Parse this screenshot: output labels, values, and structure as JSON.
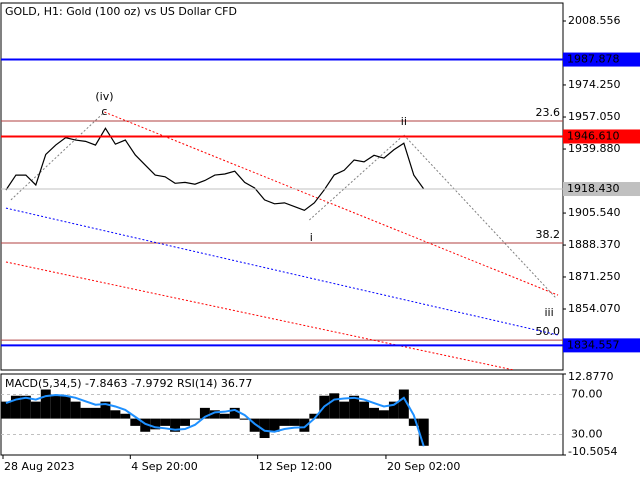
{
  "chart_data": [
    {
      "type": "line",
      "title": "GOLD, H1:  Gold (100 oz) vs US Dollar CFD",
      "color": "#000000",
      "xlim": [
        -0.5,
        56
      ],
      "ylim": [
        1821.35,
        2018.21
      ],
      "yticks": [
        2008.556,
        {
          "value": 1974.25,
          "label": "1974.250"
        },
        {
          "value": 1957.05,
          "label": "1957.050"
        },
        {
          "value": 1939.88,
          "label": "1939.880"
        },
        {
          "value": 1905.54,
          "label": "1905.540"
        },
        {
          "value": 1888.37,
          "label": "1888.370"
        },
        {
          "value": 1871.25,
          "label": "1871.250"
        },
        {
          "value": 1854.07,
          "label": "1854.070"
        }
      ],
      "values": [
        1917.9,
        1925.9,
        1925.9,
        1920.6,
        1937.0,
        1942.0,
        1946.0,
        1944.7,
        1944.0,
        1942.0,
        1951.0,
        1942.5,
        1944.7,
        1936.7,
        1931.3,
        1925.9,
        1925.0,
        1921.5,
        1922.0,
        1921.0,
        1923.0,
        1925.9,
        1926.5,
        1928.0,
        1922.0,
        1919.0,
        1912.6,
        1910.5,
        1911.0,
        1909.0,
        1907.0,
        1911.0,
        1918.0,
        1926.0,
        1928.5,
        1934.0,
        1933.0,
        1936.5,
        1935.0,
        1939.5,
        1943.0,
        1925.9,
        1918.43
      ],
      "levels": [
        {
          "value": 1987.878,
          "color": "#0000ff"
        },
        {
          "value": 1946.61,
          "label": "1946.610",
          "color": "#ff0000"
        },
        {
          "value": 1918.43,
          "label": "1918.430",
          "color": "#c0c0c0"
        },
        {
          "value": 1834.557,
          "color": "#0000ff"
        }
      ],
      "fib_levels": [
        {
          "label": "23.6",
          "value": 1954.9
        },
        {
          "label": "38.2",
          "value": 1889.5
        },
        {
          "label": "50.0",
          "value": 1837.4
        }
      ],
      "fib_color": "#b04040",
      "trendlines": [
        {
          "color": "#ff0000",
          "points": [
            [
              9.9,
              1959.7
            ],
            [
              55.5,
              1861.5
            ]
          ]
        },
        {
          "color": "#ff0000",
          "points": [
            [
              0,
              1879.3
            ],
            [
              51,
              1821.4
            ]
          ]
        },
        {
          "color": "#0000ff",
          "points": [
            [
              0,
              1908.2
            ],
            [
              55.5,
              1840.1
            ]
          ]
        },
        {
          "color": "#808080",
          "points": [
            [
              0.5,
              1912.6
            ],
            [
              9.9,
              1959.7
            ]
          ]
        },
        {
          "color": "#808080",
          "points": [
            [
              30.5,
              1901.8
            ],
            [
              40,
              1947.4
            ]
          ]
        },
        {
          "color": "#808080",
          "points": [
            [
              40,
              1947.4
            ],
            [
              55.3,
              1859.9
            ]
          ]
        }
      ],
      "annotations": [
        {
          "text": "(iv)",
          "x": 9.9,
          "y": 1967.8,
          "color": "#ff0000"
        },
        {
          "text": "c",
          "x": 9.9,
          "y": 1959.7,
          "color": "#808080"
        },
        {
          "text": "ii",
          "x": 40,
          "y": 1954.4,
          "color": "#808080"
        },
        {
          "text": "i",
          "x": 30.7,
          "y": 1892.2,
          "color": "#808080"
        },
        {
          "text": "iii",
          "x": 54.6,
          "y": 1851.9,
          "color": "#808080"
        }
      ]
    },
    {
      "type": "bar",
      "title": "MACD(5,34,5) -7.8463 -7.9792 RSI(14) 36.77",
      "color": "#000000",
      "signal_color": "#1e90ff",
      "xlim": [
        -0.5,
        56
      ],
      "xticks": [
        {
          "value": -0.3,
          "label": "28 Aug 2023"
        },
        {
          "value": 12.5,
          "label": "4 Sep 20:00"
        },
        {
          "value": 25.3,
          "label": "12 Sep 12:00"
        },
        {
          "value": 38.2,
          "label": "20 Sep 02:00"
        }
      ],
      "ylim": [
        -10.5054,
        12.877
      ],
      "yticks": [
        {
          "value": 12.877,
          "label": "12.8770"
        },
        {
          "value": -10.5054,
          "label": "-10.5054"
        }
      ],
      "y2lim": [
        9.4,
        90.6
      ],
      "y2ticks": [
        {
          "value": 70,
          "label": "70.00"
        },
        {
          "value": 30,
          "label": "30.00"
        }
      ],
      "values": [
        4.9,
        6.6,
        6.6,
        4.9,
        8.4,
        6.6,
        6.6,
        4.9,
        3.1,
        3.1,
        4.9,
        2.4,
        1.4,
        -2.1,
        -3.8,
        -3.1,
        -2.1,
        -3.8,
        -2.1,
        -0.3,
        3.1,
        2.4,
        1.4,
        3.1,
        -0.3,
        -3.8,
        -5.6,
        -3.8,
        -2.1,
        -2.1,
        -3.8,
        1.4,
        6.6,
        7.3,
        4.9,
        6.6,
        4.9,
        3.1,
        2.4,
        4.9,
        8.4,
        -2.1,
        -7.8463
      ],
      "signal": [
        4.5,
        5.5,
        6.0,
        5.5,
        6.5,
        6.8,
        6.6,
        6.0,
        5.0,
        4.0,
        4.2,
        3.5,
        2.5,
        0.5,
        -1.5,
        -2.5,
        -2.8,
        -3.2,
        -3.0,
        -1.8,
        0.5,
        1.8,
        2.0,
        2.5,
        1.0,
        -1.5,
        -3.5,
        -3.8,
        -3.0,
        -2.6,
        -2.5,
        0.0,
        3.5,
        5.5,
        5.8,
        6.0,
        5.5,
        4.5,
        3.5,
        4.0,
        6.0,
        1.0,
        -7.9792
      ]
    }
  ]
}
